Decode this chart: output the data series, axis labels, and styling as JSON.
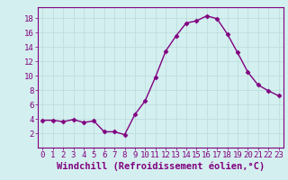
{
  "x": [
    0,
    1,
    2,
    3,
    4,
    5,
    6,
    7,
    8,
    9,
    10,
    11,
    12,
    13,
    14,
    15,
    16,
    17,
    18,
    19,
    20,
    21,
    22,
    23
  ],
  "y": [
    3.8,
    3.8,
    3.6,
    3.9,
    3.5,
    3.7,
    2.2,
    2.2,
    1.8,
    4.6,
    6.5,
    9.8,
    13.4,
    15.5,
    17.3,
    17.6,
    18.3,
    17.9,
    15.8,
    13.2,
    10.5,
    8.7,
    7.9,
    7.2
  ],
  "line_color": "#800080",
  "marker": "D",
  "marker_size": 2.5,
  "bg_color": "#d4efef",
  "grid_color": "#c0e0e0",
  "xlabel": "Windchill (Refroidissement éolien,°C)",
  "xlim": [
    -0.5,
    23.5
  ],
  "ylim": [
    0,
    19.5
  ],
  "yticks": [
    2,
    4,
    6,
    8,
    10,
    12,
    14,
    16,
    18
  ],
  "xticks": [
    0,
    1,
    2,
    3,
    4,
    5,
    6,
    7,
    8,
    9,
    10,
    11,
    12,
    13,
    14,
    15,
    16,
    17,
    18,
    19,
    20,
    21,
    22,
    23
  ],
  "tick_color": "#800080",
  "tick_fontsize": 6.5,
  "xlabel_fontsize": 7.5,
  "line_width": 1.0
}
